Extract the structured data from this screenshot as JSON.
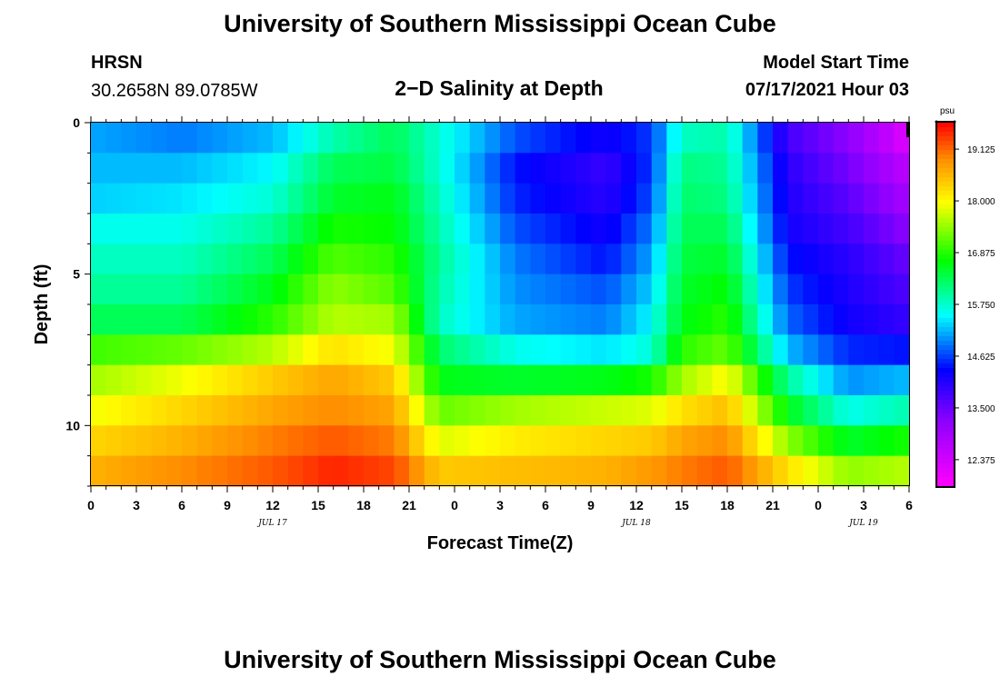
{
  "header": {
    "title": "University of Southern Mississippi Ocean Cube",
    "station": "HRSN",
    "coords": "30.2658N  89.0785W",
    "subtitle": "2−D Salinity at Depth",
    "model_start_label": "Model Start Time",
    "model_start_value": "07/17/2021 Hour 03"
  },
  "footer": {
    "title": "University of Southern Mississippi Ocean Cube"
  },
  "colorbar": {
    "unit": "psu",
    "min": 11.8,
    "max": 19.7,
    "ticks": [
      12.375,
      13.5,
      14.625,
      15.75,
      16.875,
      18.0,
      19.125
    ],
    "tick_labels": [
      "12.375",
      "13.500",
      "14.625",
      "15.750",
      "16.875",
      "18.000",
      "19.125"
    ]
  },
  "chart_data": {
    "type": "heatmap",
    "title": "2−D Salinity at Depth",
    "xlabel": "Forecast Time(Z)",
    "ylabel": "Depth (ft)",
    "x_tick_labels": [
      "0",
      "3",
      "6",
      "9",
      "12",
      "15",
      "18",
      "21",
      "0",
      "3",
      "6",
      "9",
      "12",
      "15",
      "18",
      "21",
      "0",
      "3",
      "6"
    ],
    "x_hours": [
      0,
      3,
      6,
      9,
      12,
      15,
      18,
      21,
      24,
      27,
      30,
      33,
      36,
      39,
      42,
      45,
      48,
      51,
      54
    ],
    "xlim": [
      0,
      54
    ],
    "y_ticks": [
      0,
      5,
      10
    ],
    "y_tick_labels": [
      "0",
      "5",
      "10"
    ],
    "ylim": [
      0,
      12
    ],
    "date_labels": [
      {
        "text": "JUL 17",
        "hour": 12
      },
      {
        "text": "JUL 18",
        "hour": 36
      },
      {
        "text": "JUL 19",
        "hour": 51
      }
    ],
    "depth_rows": [
      0.5,
      1.5,
      2.5,
      3.5,
      4.5,
      5.5,
      6.5,
      7.5,
      8.5,
      9.5,
      10.5,
      11.5
    ],
    "keyframes_hours": [
      0,
      6,
      12,
      16,
      20,
      23,
      28,
      34,
      37,
      39,
      42,
      46,
      50,
      54
    ],
    "salinity_psu": [
      [
        15.1,
        14.9,
        15.2,
        15.9,
        16.3,
        15.7,
        14.7,
        14.2,
        14.6,
        15.8,
        15.9,
        13.8,
        13.2,
        12.2
      ],
      [
        15.2,
        15.2,
        15.5,
        16.3,
        16.4,
        15.7,
        14.4,
        13.9,
        14.6,
        16.1,
        16.0,
        14.0,
        13.4,
        12.6
      ],
      [
        15.3,
        15.4,
        15.7,
        16.5,
        16.6,
        15.8,
        14.5,
        14.0,
        14.7,
        16.2,
        16.1,
        14.1,
        13.6,
        12.9
      ],
      [
        15.6,
        15.6,
        16.0,
        16.8,
        16.7,
        15.9,
        14.7,
        14.2,
        14.9,
        16.3,
        16.3,
        14.2,
        13.8,
        13.2
      ],
      [
        15.8,
        15.8,
        16.3,
        17.1,
        16.9,
        16.0,
        14.9,
        14.4,
        15.1,
        16.4,
        16.5,
        14.4,
        14.0,
        13.5
      ],
      [
        16.0,
        16.0,
        16.6,
        17.4,
        17.1,
        15.9,
        15.0,
        14.7,
        15.3,
        16.5,
        16.7,
        14.6,
        14.1,
        13.7
      ],
      [
        16.3,
        16.3,
        16.9,
        17.6,
        17.5,
        15.8,
        15.1,
        14.9,
        15.5,
        16.6,
        16.9,
        14.8,
        14.2,
        13.9
      ],
      [
        17.0,
        17.2,
        17.6,
        18.2,
        17.9,
        16.2,
        15.6,
        15.4,
        15.7,
        16.9,
        17.2,
        15.2,
        14.5,
        14.4
      ],
      [
        17.5,
        17.9,
        18.4,
        18.7,
        18.4,
        16.6,
        16.5,
        16.6,
        16.8,
        17.5,
        18.0,
        16.0,
        15.0,
        15.2
      ],
      [
        17.9,
        18.3,
        18.7,
        18.9,
        18.7,
        17.2,
        17.5,
        17.7,
        17.8,
        18.2,
        18.5,
        16.6,
        15.6,
        15.9
      ],
      [
        18.3,
        18.6,
        19.0,
        19.2,
        19.0,
        17.8,
        18.1,
        18.3,
        18.4,
        18.7,
        18.9,
        17.4,
        16.5,
        16.8
      ],
      [
        18.6,
        18.9,
        19.2,
        19.5,
        19.3,
        18.4,
        18.5,
        18.6,
        18.8,
        19.0,
        19.2,
        18.2,
        17.4,
        17.6
      ]
    ]
  }
}
